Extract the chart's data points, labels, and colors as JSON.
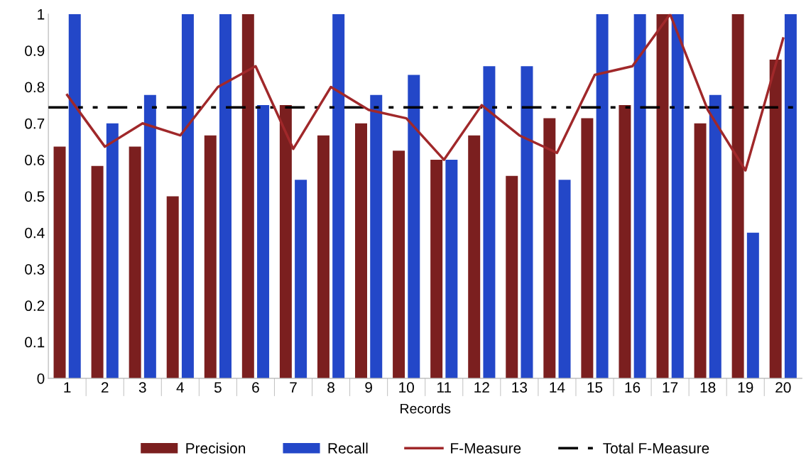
{
  "chart_data": {
    "type": "bar",
    "xlabel": "Records",
    "categories": [
      "1",
      "2",
      "3",
      "4",
      "5",
      "6",
      "7",
      "8",
      "9",
      "10",
      "11",
      "12",
      "13",
      "14",
      "15",
      "16",
      "17",
      "18",
      "19",
      "20"
    ],
    "series": [
      {
        "name": "Precision",
        "type": "bar",
        "color": "#7b1f1f",
        "values": [
          0.636,
          0.583,
          0.636,
          0.5,
          0.667,
          1,
          0.75,
          0.667,
          0.7,
          0.625,
          0.6,
          0.667,
          0.556,
          0.714,
          0.714,
          0.75,
          1,
          0.7,
          1,
          0.875
        ]
      },
      {
        "name": "Recall",
        "type": "bar",
        "color": "#2347c8",
        "values": [
          1,
          0.7,
          0.778,
          1,
          1,
          0.75,
          0.545,
          1,
          0.778,
          0.833,
          0.6,
          0.857,
          0.857,
          0.545,
          1,
          1,
          1,
          0.778,
          0.4,
          1
        ]
      },
      {
        "name": "F-Measure",
        "type": "line",
        "color": "#a0282a",
        "values": [
          0.778,
          0.636,
          0.7,
          0.667,
          0.8,
          0.857,
          0.63,
          0.8,
          0.737,
          0.714,
          0.6,
          0.75,
          0.667,
          0.619,
          0.833,
          0.857,
          1,
          0.737,
          0.571,
          0.933
        ]
      }
    ],
    "ref_lines": [
      {
        "axis": "y",
        "value": 0.744,
        "label": "Total F-Measure",
        "color": "#000000",
        "line_style": "dashdotdot"
      }
    ],
    "ylim": [
      0,
      1
    ],
    "yticks": [
      0,
      0.1,
      0.2,
      0.3,
      0.4,
      0.5,
      0.6,
      0.7,
      0.8,
      0.9,
      1
    ],
    "grid": false,
    "legend": "bottom",
    "marker": "none",
    "line_style": "solid"
  }
}
